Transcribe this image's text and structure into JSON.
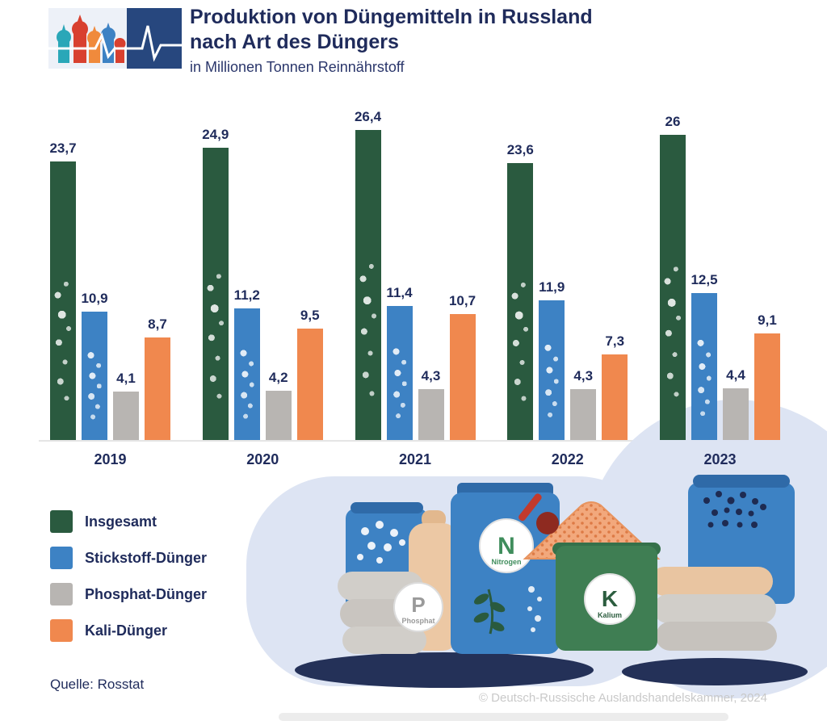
{
  "header": {
    "title_line1": "Produktion von Düngemitteln in Russland",
    "title_line2": "nach Art des Düngers",
    "subtitle": "in Millionen Tonnen Reinnährstoff"
  },
  "chart_data": {
    "type": "bar",
    "title": "Produktion von Düngemitteln in Russland nach Art des Düngers",
    "subtitle": "in Millionen Tonnen Reinnährstoff",
    "categories": [
      "2019",
      "2020",
      "2021",
      "2022",
      "2023"
    ],
    "series": [
      {
        "name": "Insgesamt",
        "color": "#2a5a3f",
        "values": [
          23.7,
          24.9,
          26.4,
          23.6,
          26
        ]
      },
      {
        "name": "Stickstoff-Dünger",
        "color": "#3d82c4",
        "values": [
          10.9,
          11.2,
          11.4,
          11.9,
          12.5
        ]
      },
      {
        "name": "Phosphat-Dünger",
        "color": "#b8b5b2",
        "values": [
          4.1,
          4.2,
          4.3,
          4.3,
          4.4
        ]
      },
      {
        "name": "Kali-Dünger",
        "color": "#f0884e",
        "values": [
          8.7,
          9.5,
          10.7,
          7.3,
          9.1
        ]
      }
    ],
    "ylim": [
      0,
      28
    ],
    "grid": false,
    "legend_position": "bottom-left",
    "value_labels": true,
    "value_label_format": "comma-decimal"
  },
  "source": "Quelle: Rosstat",
  "copyright": "© Deutsch-Russische Auslandshandelskammer, 2024",
  "illustration": {
    "n_badge": {
      "letter": "N",
      "label": "Nitrogen"
    },
    "p_badge": {
      "letter": "P",
      "label": "Phosphat"
    },
    "k_badge": {
      "letter": "K",
      "label": "Kalium"
    }
  },
  "colors": {
    "accent_navy": "#1f2b5b",
    "blob_light_blue": "#dde4f3",
    "logo_navy": "#27477e"
  }
}
